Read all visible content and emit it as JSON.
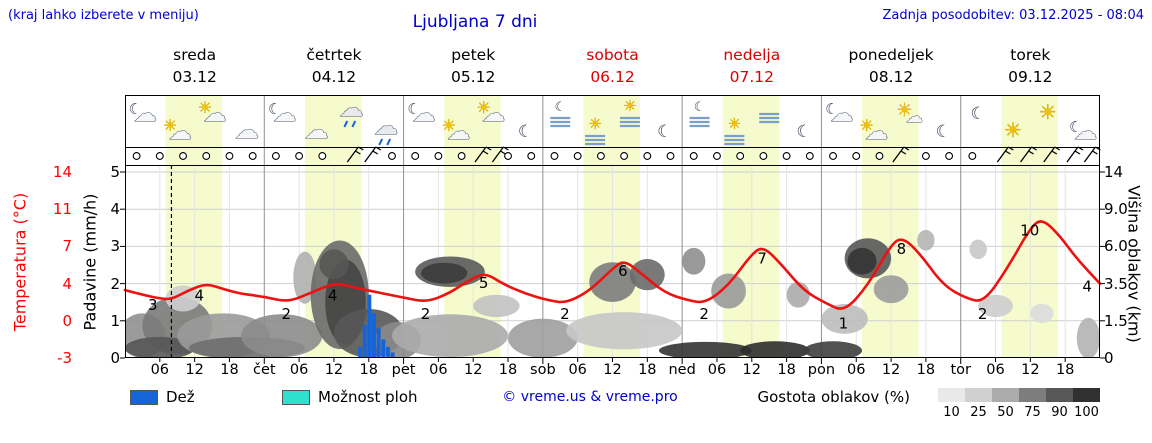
{
  "header": {
    "hint": "(kraj lahko izberete v meniju)",
    "title": "Ljubljana 7 dni",
    "updated": "Zadnja posodobitev: 03.12.2025 - 08:04"
  },
  "axes": {
    "left_temp": {
      "label": "Temperatura (°C)",
      "ticks": [
        "14",
        "11",
        "7",
        "4",
        "0",
        "-3"
      ]
    },
    "left_precip": {
      "label": "Padavine (mm/h)",
      "ticks": [
        "5",
        "4",
        "3",
        "2",
        "1",
        "0"
      ]
    },
    "right_cloud": {
      "label": "Višina oblakov (km)",
      "ticks": [
        "14",
        "9.0",
        "6.0",
        "3.5",
        "1.5",
        "0"
      ]
    }
  },
  "days": [
    {
      "name": "sreda",
      "date": "03.12",
      "red": false
    },
    {
      "name": "četrtek",
      "date": "04.12",
      "red": false
    },
    {
      "name": "petek",
      "date": "05.12",
      "red": false
    },
    {
      "name": "sobota",
      "date": "06.12",
      "red": true
    },
    {
      "name": "nedelja",
      "date": "07.12",
      "red": true
    },
    {
      "name": "ponedeljek",
      "date": "08.12",
      "red": false
    },
    {
      "name": "torek",
      "date": "09.12",
      "red": false
    }
  ],
  "xticks": [
    {
      "t": 6,
      "label": "06"
    },
    {
      "t": 12,
      "label": "12"
    },
    {
      "t": 18,
      "label": "18"
    },
    {
      "t": 24,
      "label": "čet"
    },
    {
      "t": 30,
      "label": "06"
    },
    {
      "t": 36,
      "label": "12"
    },
    {
      "t": 42,
      "label": "18"
    },
    {
      "t": 48,
      "label": "pet"
    },
    {
      "t": 54,
      "label": "06"
    },
    {
      "t": 60,
      "label": "12"
    },
    {
      "t": 66,
      "label": "18"
    },
    {
      "t": 72,
      "label": "sob"
    },
    {
      "t": 78,
      "label": "06"
    },
    {
      "t": 84,
      "label": "12"
    },
    {
      "t": 90,
      "label": "18"
    },
    {
      "t": 96,
      "label": "ned"
    },
    {
      "t": 102,
      "label": "06"
    },
    {
      "t": 108,
      "label": "12"
    },
    {
      "t": 114,
      "label": "18"
    },
    {
      "t": 120,
      "label": "pon"
    },
    {
      "t": 126,
      "label": "06"
    },
    {
      "t": 132,
      "label": "12"
    },
    {
      "t": 138,
      "label": "18"
    },
    {
      "t": 144,
      "label": "tor"
    },
    {
      "t": 150,
      "label": "06"
    },
    {
      "t": 156,
      "label": "12"
    },
    {
      "t": 162,
      "label": "18"
    }
  ],
  "legend": {
    "rain_label": "Dež",
    "showers_label": "Možnost ploh",
    "copyright": "© vreme.us & vreme.pro",
    "cloud_density_label": "Gostota oblakov (%)",
    "cloud_scale_labels": [
      "10",
      "25",
      "50",
      "75",
      "90",
      "100"
    ],
    "cloud_scale_colors": [
      "#e9e9e9",
      "#d0d0d0",
      "#ababab",
      "#7d7d7d",
      "#575757",
      "#303030"
    ],
    "rain_color": "#1665d8",
    "showers_color": "#2fe0cf"
  },
  "chart_data": {
    "type": "line",
    "title": "Ljubljana 7 dni",
    "x_unit": "hours from 03.12 00:00, 7 days",
    "x_range": [
      0,
      168
    ],
    "temp_anchor_values": [
      -3,
      0,
      4,
      7,
      11,
      14
    ],
    "cloud_anchor_km": [
      0,
      1.5,
      3.5,
      6,
      9,
      14
    ],
    "precip_axis_max": 5,
    "daylight": {
      "start_hour": 7,
      "end_hour": 16.75
    },
    "now_line_hour": 8,
    "temperature_series": [
      [
        0,
        3.3
      ],
      [
        3,
        2.8
      ],
      [
        6,
        2.4
      ],
      [
        8,
        2.3
      ],
      [
        11,
        3.3
      ],
      [
        14,
        4.0
      ],
      [
        17,
        3.4
      ],
      [
        20,
        2.9
      ],
      [
        24,
        2.6
      ],
      [
        28,
        2.0
      ],
      [
        32,
        3.0
      ],
      [
        35,
        3.8
      ],
      [
        37,
        4.0
      ],
      [
        40,
        3.5
      ],
      [
        44,
        3.0
      ],
      [
        48,
        2.5
      ],
      [
        52,
        2.0
      ],
      [
        56,
        3.0
      ],
      [
        59,
        4.2
      ],
      [
        62,
        4.9
      ],
      [
        65,
        4.0
      ],
      [
        69,
        2.9
      ],
      [
        73,
        2.2
      ],
      [
        76,
        1.9
      ],
      [
        80,
        3.2
      ],
      [
        84,
        5.2
      ],
      [
        86,
        5.9
      ],
      [
        89,
        4.8
      ],
      [
        93,
        3.0
      ],
      [
        97,
        2.2
      ],
      [
        100,
        1.9
      ],
      [
        104,
        3.8
      ],
      [
        108,
        6.4
      ],
      [
        110,
        7.0
      ],
      [
        113,
        5.6
      ],
      [
        117,
        3.2
      ],
      [
        121,
        1.8
      ],
      [
        124,
        1.0
      ],
      [
        128,
        3.8
      ],
      [
        132,
        7.2
      ],
      [
        134,
        8.0
      ],
      [
        137,
        6.4
      ],
      [
        141,
        3.8
      ],
      [
        145,
        2.4
      ],
      [
        148,
        2.0
      ],
      [
        152,
        5.2
      ],
      [
        156,
        9.0
      ],
      [
        158,
        10.0
      ],
      [
        161,
        8.2
      ],
      [
        164,
        6.0
      ],
      [
        168,
        4.0
      ]
    ],
    "temperature_labels": [
      {
        "t": 5,
        "v": 3,
        "label": "3"
      },
      {
        "t": 13,
        "v": 4,
        "label": "4"
      },
      {
        "t": 28,
        "v": 2,
        "label": "2"
      },
      {
        "t": 36,
        "v": 4,
        "label": "4"
      },
      {
        "t": 52,
        "v": 2,
        "label": "2"
      },
      {
        "t": 62,
        "v": 5,
        "label": "5"
      },
      {
        "t": 76,
        "v": 2,
        "label": "2"
      },
      {
        "t": 86,
        "v": 6,
        "label": "6"
      },
      {
        "t": 100,
        "v": 2,
        "label": "2"
      },
      {
        "t": 110,
        "v": 7,
        "label": "7"
      },
      {
        "t": 124,
        "v": 1,
        "label": "1"
      },
      {
        "t": 134,
        "v": 8,
        "label": "8"
      },
      {
        "t": 148,
        "v": 2,
        "label": "2"
      },
      {
        "t": 157,
        "v": 10,
        "label": "10",
        "dx": -16
      },
      {
        "t": 166,
        "v": 4,
        "label": "4",
        "dy": 8
      }
    ],
    "precipitation_bars": [
      [
        40.5,
        0.3
      ],
      [
        41.3,
        0.9
      ],
      [
        42.1,
        1.7
      ],
      [
        42.9,
        1.2
      ],
      [
        43.7,
        0.8
      ],
      [
        44.5,
        0.5
      ],
      [
        45.3,
        0.3
      ],
      [
        46.1,
        0.15
      ]
    ],
    "cloud_blobs": [
      {
        "t": 3,
        "km": 0.9,
        "rt": 4,
        "rkm": 1.0,
        "c": "#909090"
      },
      {
        "t": 9,
        "km": 1.3,
        "rt": 6,
        "rkm": 1.3,
        "c": "#7a7a7a"
      },
      {
        "t": 6,
        "km": 0.4,
        "rt": 6,
        "rkm": 0.5,
        "c": "#565656"
      },
      {
        "t": 17,
        "km": 0.9,
        "rt": 8,
        "rkm": 1.0,
        "c": "#9a9a9a"
      },
      {
        "t": 21,
        "km": 0.4,
        "rt": 10,
        "rkm": 0.5,
        "c": "#6e6e6e"
      },
      {
        "t": 27,
        "km": 0.9,
        "rt": 7,
        "rkm": 0.9,
        "c": "#8c8c8c"
      },
      {
        "t": 10,
        "km": 2.7,
        "rt": 3,
        "rkm": 0.7,
        "c": "#cfcfcf"
      },
      {
        "t": 31,
        "km": 3.9,
        "rt": 2,
        "rkm": 1.6,
        "c": "#b0b0b0"
      },
      {
        "t": 37,
        "km": 2.9,
        "rt": 5,
        "rkm": 2.9,
        "c": "#6a6a6a"
      },
      {
        "t": 38,
        "km": 2.5,
        "rt": 3.5,
        "rkm": 2.2,
        "c": "#454545"
      },
      {
        "t": 36,
        "km": 4.8,
        "rt": 2.5,
        "rkm": 1.0,
        "c": "#565656"
      },
      {
        "t": 42,
        "km": 1.0,
        "rt": 6,
        "rkm": 1.1,
        "c": "#585858"
      },
      {
        "t": 47,
        "km": 0.7,
        "rt": 4,
        "rkm": 0.8,
        "c": "#8a8a8a"
      },
      {
        "t": 56,
        "km": 4.3,
        "rt": 6,
        "rkm": 1.0,
        "c": "#5a5a5a"
      },
      {
        "t": 55,
        "km": 4.2,
        "rt": 4,
        "rkm": 0.7,
        "c": "#3c3c3c"
      },
      {
        "t": 56,
        "km": 0.9,
        "rt": 10,
        "rkm": 0.9,
        "c": "#ababab"
      },
      {
        "t": 64,
        "km": 2.3,
        "rt": 4,
        "rkm": 0.6,
        "c": "#c2c2c2"
      },
      {
        "t": 72,
        "km": 0.8,
        "rt": 6,
        "rkm": 0.8,
        "c": "#9e9e9e"
      },
      {
        "t": 84,
        "km": 3.6,
        "rt": 4,
        "rkm": 1.2,
        "c": "#7c7c7c"
      },
      {
        "t": 90,
        "km": 4.1,
        "rt": 3,
        "rkm": 1.0,
        "c": "#6a6a6a"
      },
      {
        "t": 86,
        "km": 1.1,
        "rt": 10,
        "rkm": 0.8,
        "c": "#c6c6c6"
      },
      {
        "t": 98,
        "km": 5.0,
        "rt": 2,
        "rkm": 0.9,
        "c": "#8e8e8e"
      },
      {
        "t": 100,
        "km": 0.3,
        "rt": 8,
        "rkm": 0.4,
        "c": "#333333"
      },
      {
        "t": 104,
        "km": 3.1,
        "rt": 3,
        "rkm": 1.0,
        "c": "#9a9a9a"
      },
      {
        "t": 112,
        "km": 0.3,
        "rt": 6,
        "rkm": 0.45,
        "c": "#2e2e2e"
      },
      {
        "t": 116,
        "km": 2.9,
        "rt": 2,
        "rkm": 0.7,
        "c": "#ababab"
      },
      {
        "t": 122,
        "km": 0.3,
        "rt": 5,
        "rkm": 0.45,
        "c": "#3e3e3e"
      },
      {
        "t": 124,
        "km": 1.6,
        "rt": 4,
        "rkm": 0.7,
        "c": "#bdbdbd"
      },
      {
        "t": 128,
        "km": 5.2,
        "rt": 4,
        "rkm": 1.4,
        "c": "#585858"
      },
      {
        "t": 127,
        "km": 5.0,
        "rt": 2.5,
        "rkm": 0.9,
        "c": "#343434"
      },
      {
        "t": 132,
        "km": 3.2,
        "rt": 3,
        "rkm": 0.8,
        "c": "#9c9c9c"
      },
      {
        "t": 138,
        "km": 6.5,
        "rt": 1.5,
        "rkm": 0.8,
        "c": "#b5b5b5"
      },
      {
        "t": 147,
        "km": 5.8,
        "rt": 1.5,
        "rkm": 0.7,
        "c": "#c8c8c8"
      },
      {
        "t": 150,
        "km": 2.3,
        "rt": 3,
        "rkm": 0.6,
        "c": "#cdcdcd"
      },
      {
        "t": 158,
        "km": 1.9,
        "rt": 2,
        "rkm": 0.5,
        "c": "#dcdcdc"
      },
      {
        "t": 166,
        "km": 0.8,
        "rt": 2,
        "rkm": 0.9,
        "c": "#b3b3b3"
      }
    ],
    "icons": [
      {
        "t": 3,
        "type": "moon-cloud"
      },
      {
        "t": 9,
        "type": "cloud-sun"
      },
      {
        "t": 15,
        "type": "cloud-sun"
      },
      {
        "t": 21,
        "type": "cloud"
      },
      {
        "t": 27,
        "type": "moon-cloud"
      },
      {
        "t": 33,
        "type": "cloud"
      },
      {
        "t": 39,
        "type": "cloud-rain"
      },
      {
        "t": 45,
        "type": "cloud-rain"
      },
      {
        "t": 51,
        "type": "moon-cloud"
      },
      {
        "t": 57,
        "type": "cloud-sun"
      },
      {
        "t": 63,
        "type": "cloud-sun"
      },
      {
        "t": 69,
        "type": "moon"
      },
      {
        "t": 75,
        "type": "fog-moon"
      },
      {
        "t": 81,
        "type": "fog-sun"
      },
      {
        "t": 87,
        "type": "fog-sun"
      },
      {
        "t": 93,
        "type": "moon"
      },
      {
        "t": 99,
        "type": "fog-moon"
      },
      {
        "t": 105,
        "type": "fog-sun"
      },
      {
        "t": 111,
        "type": "fog"
      },
      {
        "t": 117,
        "type": "moon"
      },
      {
        "t": 123,
        "type": "moon-cloud"
      },
      {
        "t": 129,
        "type": "cloud-sun"
      },
      {
        "t": 135,
        "type": "sun-cloud"
      },
      {
        "t": 141,
        "type": "moon"
      },
      {
        "t": 147,
        "type": "moon"
      },
      {
        "t": 153,
        "type": "sun"
      },
      {
        "t": 159,
        "type": "sun"
      },
      {
        "t": 165,
        "type": "moon-cloud"
      }
    ],
    "wind": {
      "circle_step_hours": 4,
      "barb_hours": [
        39,
        42,
        61,
        64,
        133,
        151,
        155,
        159,
        163,
        166
      ]
    },
    "colors": {
      "temperature_line": "#ee1111",
      "rain_bar": "#1665d8",
      "daylight_band": "#f6fbce",
      "grid": "#cfcfcf",
      "day_boundary": "#909090",
      "frame": "#000000",
      "fog_icon": "#7aa0c8",
      "weekend_red": "#dd0000",
      "header_blue": "#0000cc"
    }
  }
}
